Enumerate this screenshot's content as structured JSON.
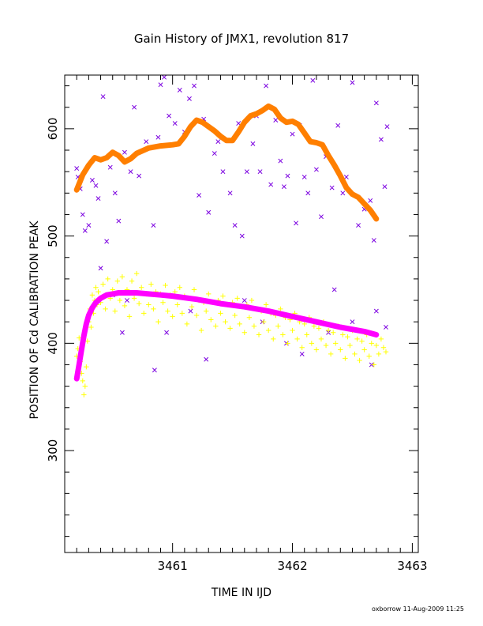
{
  "chart_data": {
    "type": "scatter",
    "title": "Gain History of JMX1, revolution 817",
    "xlabel": "TIME IN IJD",
    "ylabel": "POSITION OF Cd CALIBRATION PEAK",
    "xlim": [
      3460.1,
      3463.05
    ],
    "ylim": [
      205,
      650
    ],
    "x_ticks": [
      3461,
      3462,
      3463
    ],
    "x_tick_labels": [
      "3461",
      "3462",
      "3463"
    ],
    "y_ticks": [
      300,
      400,
      500,
      600
    ],
    "y_tick_labels": [
      "300",
      "400",
      "500",
      "600"
    ],
    "x_minor_step": 0.1,
    "y_minor_step": 20,
    "credit": "oxborrow 11-Aug-2009 11:25",
    "colors": {
      "upper_points": "#7b00e0",
      "upper_fit": "#ff7f00",
      "lower_points": "#ffff00",
      "lower_fit": "#ff00ff",
      "axes": "#000000"
    },
    "series": [
      {
        "marker": "x-icon",
        "color": "#7b00e0",
        "points": [
          [
            3460.2,
            563
          ],
          [
            3460.21,
            555
          ],
          [
            3460.23,
            544
          ],
          [
            3460.25,
            520
          ],
          [
            3460.27,
            505
          ],
          [
            3460.3,
            510
          ],
          [
            3460.33,
            552
          ],
          [
            3460.36,
            547
          ],
          [
            3460.38,
            535
          ],
          [
            3460.42,
            630
          ],
          [
            3460.45,
            495
          ],
          [
            3460.48,
            564
          ],
          [
            3460.52,
            540
          ],
          [
            3460.55,
            514
          ],
          [
            3460.6,
            578
          ],
          [
            3460.65,
            560
          ],
          [
            3460.68,
            620
          ],
          [
            3460.72,
            556
          ],
          [
            3460.78,
            588
          ],
          [
            3460.84,
            510
          ],
          [
            3460.88,
            592
          ],
          [
            3460.9,
            641
          ],
          [
            3460.93,
            648
          ],
          [
            3460.97,
            612
          ],
          [
            3461.02,
            605
          ],
          [
            3461.06,
            636
          ],
          [
            3461.1,
            597
          ],
          [
            3461.14,
            628
          ],
          [
            3461.18,
            640
          ],
          [
            3461.22,
            538
          ],
          [
            3461.26,
            609
          ],
          [
            3461.3,
            522
          ],
          [
            3461.35,
            577
          ],
          [
            3461.38,
            588
          ],
          [
            3461.42,
            560
          ],
          [
            3461.48,
            540
          ],
          [
            3461.52,
            510
          ],
          [
            3461.55,
            605
          ],
          [
            3461.58,
            500
          ],
          [
            3461.62,
            560
          ],
          [
            3461.67,
            586
          ],
          [
            3461.7,
            612
          ],
          [
            3461.73,
            560
          ],
          [
            3461.78,
            640
          ],
          [
            3461.82,
            548
          ],
          [
            3461.86,
            608
          ],
          [
            3461.9,
            570
          ],
          [
            3461.93,
            546
          ],
          [
            3461.96,
            556
          ],
          [
            3462.0,
            595
          ],
          [
            3462.03,
            512
          ],
          [
            3462.06,
            603
          ],
          [
            3462.1,
            555
          ],
          [
            3462.13,
            540
          ],
          [
            3462.17,
            645
          ],
          [
            3462.2,
            562
          ],
          [
            3462.24,
            518
          ],
          [
            3462.28,
            574
          ],
          [
            3462.33,
            545
          ],
          [
            3462.38,
            603
          ],
          [
            3462.42,
            540
          ],
          [
            3462.45,
            555
          ],
          [
            3462.5,
            643
          ],
          [
            3462.55,
            510
          ],
          [
            3462.6,
            525
          ],
          [
            3462.65,
            533
          ],
          [
            3462.68,
            496
          ],
          [
            3462.7,
            624
          ],
          [
            3462.74,
            590
          ],
          [
            3462.77,
            546
          ],
          [
            3462.79,
            602
          ],
          [
            3460.4,
            470
          ],
          [
            3460.5,
            445
          ],
          [
            3460.58,
            410
          ],
          [
            3460.62,
            440
          ],
          [
            3460.85,
            375
          ],
          [
            3460.95,
            410
          ],
          [
            3461.15,
            430
          ],
          [
            3461.28,
            385
          ],
          [
            3461.6,
            440
          ],
          [
            3461.75,
            420
          ],
          [
            3461.95,
            400
          ],
          [
            3462.08,
            390
          ],
          [
            3462.3,
            410
          ],
          [
            3462.35,
            450
          ],
          [
            3462.5,
            420
          ],
          [
            3462.66,
            380
          ],
          [
            3462.7,
            430
          ],
          [
            3462.78,
            415
          ]
        ]
      },
      {
        "marker": "plus-icon",
        "color": "#ffff00",
        "points": [
          [
            3460.2,
            388
          ],
          [
            3460.21,
            395
          ],
          [
            3460.22,
            405
          ],
          [
            3460.23,
            383
          ],
          [
            3460.24,
            372
          ],
          [
            3460.25,
            365
          ],
          [
            3460.26,
            352
          ],
          [
            3460.27,
            360
          ],
          [
            3460.28,
            378
          ],
          [
            3460.29,
            402
          ],
          [
            3460.3,
            420
          ],
          [
            3460.31,
            432
          ],
          [
            3460.32,
            415
          ],
          [
            3460.33,
            445
          ],
          [
            3460.34,
            428
          ],
          [
            3460.35,
            440
          ],
          [
            3460.36,
            452
          ],
          [
            3460.37,
            436
          ],
          [
            3460.38,
            448
          ],
          [
            3460.4,
            438
          ],
          [
            3460.42,
            455
          ],
          [
            3460.44,
            432
          ],
          [
            3460.46,
            460
          ],
          [
            3460.48,
            442
          ],
          [
            3460.5,
            450
          ],
          [
            3460.52,
            430
          ],
          [
            3460.54,
            458
          ],
          [
            3460.56,
            440
          ],
          [
            3460.58,
            462
          ],
          [
            3460.6,
            435
          ],
          [
            3460.62,
            450
          ],
          [
            3460.64,
            425
          ],
          [
            3460.66,
            458
          ],
          [
            3460.68,
            442
          ],
          [
            3460.7,
            465
          ],
          [
            3460.72,
            437
          ],
          [
            3460.74,
            452
          ],
          [
            3460.76,
            428
          ],
          [
            3460.78,
            446
          ],
          [
            3460.8,
            436
          ],
          [
            3460.82,
            455
          ],
          [
            3460.84,
            432
          ],
          [
            3460.86,
            448
          ],
          [
            3460.88,
            420
          ],
          [
            3460.9,
            446
          ],
          [
            3460.92,
            438
          ],
          [
            3460.94,
            454
          ],
          [
            3460.96,
            430
          ],
          [
            3460.98,
            445
          ],
          [
            3461.0,
            425
          ],
          [
            3461.02,
            448
          ],
          [
            3461.04,
            436
          ],
          [
            3461.06,
            452
          ],
          [
            3461.08,
            428
          ],
          [
            3461.1,
            444
          ],
          [
            3461.12,
            418
          ],
          [
            3461.14,
            442
          ],
          [
            3461.16,
            434
          ],
          [
            3461.18,
            450
          ],
          [
            3461.2,
            426
          ],
          [
            3461.22,
            440
          ],
          [
            3461.24,
            412
          ],
          [
            3461.26,
            438
          ],
          [
            3461.28,
            430
          ],
          [
            3461.3,
            446
          ],
          [
            3461.32,
            422
          ],
          [
            3461.34,
            438
          ],
          [
            3461.36,
            416
          ],
          [
            3461.38,
            440
          ],
          [
            3461.4,
            428
          ],
          [
            3461.42,
            444
          ],
          [
            3461.44,
            420
          ],
          [
            3461.46,
            436
          ],
          [
            3461.48,
            414
          ],
          [
            3461.5,
            438
          ],
          [
            3461.52,
            426
          ],
          [
            3461.54,
            442
          ],
          [
            3461.56,
            418
          ],
          [
            3461.58,
            434
          ],
          [
            3461.6,
            410
          ],
          [
            3461.62,
            436
          ],
          [
            3461.64,
            424
          ],
          [
            3461.66,
            440
          ],
          [
            3461.68,
            416
          ],
          [
            3461.7,
            432
          ],
          [
            3461.72,
            408
          ],
          [
            3461.74,
            430
          ],
          [
            3461.76,
            420
          ],
          [
            3461.78,
            436
          ],
          [
            3461.8,
            412
          ],
          [
            3461.82,
            428
          ],
          [
            3461.84,
            404
          ],
          [
            3461.86,
            426
          ],
          [
            3461.88,
            416
          ],
          [
            3461.9,
            432
          ],
          [
            3461.92,
            408
          ],
          [
            3461.94,
            424
          ],
          [
            3461.96,
            400
          ],
          [
            3461.98,
            422
          ],
          [
            3462.0,
            412
          ],
          [
            3462.02,
            428
          ],
          [
            3462.04,
            404
          ],
          [
            3462.06,
            420
          ],
          [
            3462.08,
            396
          ],
          [
            3462.1,
            418
          ],
          [
            3462.12,
            408
          ],
          [
            3462.14,
            424
          ],
          [
            3462.16,
            400
          ],
          [
            3462.18,
            416
          ],
          [
            3462.2,
            394
          ],
          [
            3462.22,
            414
          ],
          [
            3462.24,
            404
          ],
          [
            3462.26,
            420
          ],
          [
            3462.28,
            398
          ],
          [
            3462.3,
            412
          ],
          [
            3462.32,
            390
          ],
          [
            3462.34,
            410
          ],
          [
            3462.36,
            400
          ],
          [
            3462.38,
            416
          ],
          [
            3462.4,
            394
          ],
          [
            3462.42,
            408
          ],
          [
            3462.44,
            386
          ],
          [
            3462.46,
            406
          ],
          [
            3462.48,
            398
          ],
          [
            3462.5,
            412
          ],
          [
            3462.52,
            390
          ],
          [
            3462.54,
            404
          ],
          [
            3462.56,
            384
          ],
          [
            3462.58,
            402
          ],
          [
            3462.6,
            394
          ],
          [
            3462.62,
            408
          ],
          [
            3462.64,
            388
          ],
          [
            3462.66,
            400
          ],
          [
            3462.68,
            380
          ],
          [
            3462.7,
            398
          ],
          [
            3462.72,
            390
          ],
          [
            3462.74,
            404
          ],
          [
            3462.76,
            396
          ],
          [
            3462.78,
            392
          ]
        ]
      }
    ],
    "fits": [
      {
        "color": "#ff7f00",
        "points": [
          [
            3460.2,
            543
          ],
          [
            3460.25,
            557
          ],
          [
            3460.3,
            566
          ],
          [
            3460.35,
            573
          ],
          [
            3460.4,
            571
          ],
          [
            3460.45,
            573
          ],
          [
            3460.5,
            578
          ],
          [
            3460.55,
            575
          ],
          [
            3460.6,
            569
          ],
          [
            3460.65,
            572
          ],
          [
            3460.7,
            577
          ],
          [
            3460.8,
            582
          ],
          [
            3460.9,
            584
          ],
          [
            3461.0,
            585
          ],
          [
            3461.05,
            586
          ],
          [
            3461.1,
            593
          ],
          [
            3461.15,
            602
          ],
          [
            3461.2,
            608
          ],
          [
            3461.25,
            606
          ],
          [
            3461.3,
            602
          ],
          [
            3461.35,
            598
          ],
          [
            3461.4,
            593
          ],
          [
            3461.45,
            589
          ],
          [
            3461.5,
            589
          ],
          [
            3461.55,
            597
          ],
          [
            3461.6,
            606
          ],
          [
            3461.65,
            612
          ],
          [
            3461.7,
            614
          ],
          [
            3461.75,
            617
          ],
          [
            3461.8,
            621
          ],
          [
            3461.85,
            618
          ],
          [
            3461.9,
            610
          ],
          [
            3461.95,
            606
          ],
          [
            3462.0,
            607
          ],
          [
            3462.05,
            604
          ],
          [
            3462.1,
            596
          ],
          [
            3462.15,
            588
          ],
          [
            3462.2,
            587
          ],
          [
            3462.25,
            585
          ],
          [
            3462.3,
            575
          ],
          [
            3462.35,
            566
          ],
          [
            3462.4,
            556
          ],
          [
            3462.45,
            545
          ],
          [
            3462.5,
            539
          ],
          [
            3462.55,
            536
          ],
          [
            3462.6,
            530
          ],
          [
            3462.65,
            524
          ],
          [
            3462.7,
            516
          ]
        ]
      },
      {
        "color": "#ff00ff",
        "points": [
          [
            3460.2,
            367
          ],
          [
            3460.22,
            380
          ],
          [
            3460.24,
            394
          ],
          [
            3460.26,
            407
          ],
          [
            3460.28,
            418
          ],
          [
            3460.3,
            426
          ],
          [
            3460.33,
            433
          ],
          [
            3460.36,
            438
          ],
          [
            3460.4,
            442
          ],
          [
            3460.45,
            445
          ],
          [
            3460.5,
            446
          ],
          [
            3460.55,
            447
          ],
          [
            3460.6,
            447
          ],
          [
            3460.7,
            447
          ],
          [
            3460.8,
            446
          ],
          [
            3460.9,
            445
          ],
          [
            3461.0,
            444
          ],
          [
            3461.2,
            441
          ],
          [
            3461.4,
            437
          ],
          [
            3461.6,
            434
          ],
          [
            3461.8,
            430
          ],
          [
            3462.0,
            425
          ],
          [
            3462.2,
            420
          ],
          [
            3462.4,
            415
          ],
          [
            3462.6,
            411
          ],
          [
            3462.7,
            408
          ]
        ]
      }
    ]
  }
}
